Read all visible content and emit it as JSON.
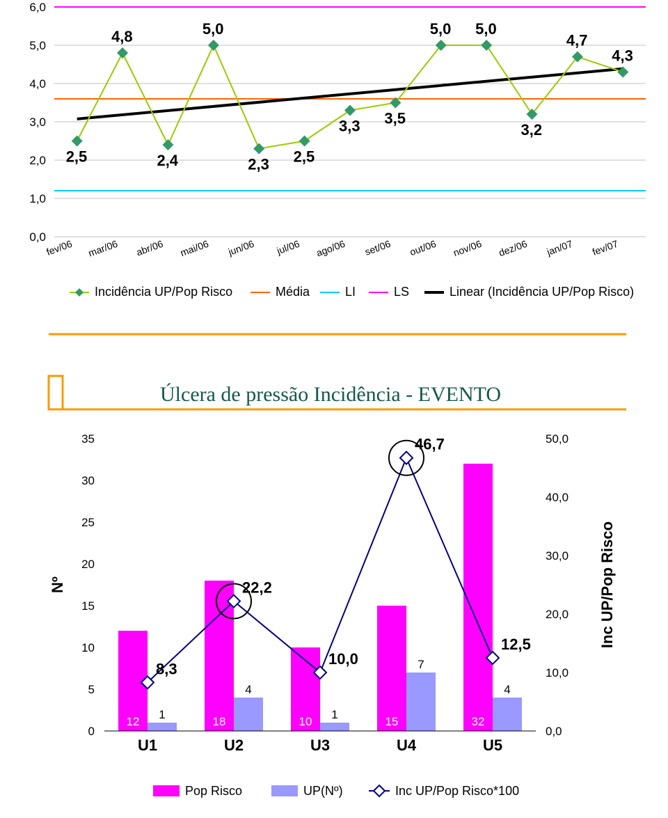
{
  "chart1": {
    "type": "line",
    "categories": [
      "fev/06",
      "mar/06",
      "abr/06",
      "mai/06",
      "jun/06",
      "jul/06",
      "ago/06",
      "set/06",
      "out/06",
      "nov/06",
      "dez/06",
      "jan/07",
      "fev/07"
    ],
    "values": [
      2.5,
      4.8,
      2.4,
      5.0,
      2.3,
      2.5,
      3.3,
      3.5,
      5.0,
      5.0,
      3.2,
      4.7,
      4.3
    ],
    "value_labels": [
      "2,5",
      "4,8",
      "2,4",
      "5,0",
      "2,3",
      "2,5",
      "3,3",
      "3,5",
      "5,0",
      "5,0",
      "3,2",
      "4,7",
      "4,3"
    ],
    "y_ticks": [
      0,
      1,
      2,
      3,
      4,
      5,
      6
    ],
    "y_tick_labels": [
      "0,0",
      "1,0",
      "2,0",
      "3,0",
      "4,0",
      "5,0",
      "6,0"
    ],
    "mean": 3.6,
    "li": 1.2,
    "ls": 6.0,
    "colors": {
      "series": "#99cc00",
      "marker": "#339966",
      "mean": "#ff6600",
      "li": "#00ccff",
      "ls": "#ff00ff",
      "trend": "#000000",
      "grid": "#808080"
    },
    "legend": {
      "s1": "Incidência UP/Pop Risco",
      "s2": "Média",
      "s3": "LI",
      "s4": "LS",
      "s5": "Linear (Incidência UP/Pop Risco)"
    }
  },
  "chart2": {
    "type": "combo",
    "title": "Úlcera de pressão Incidência - EVENTO",
    "categories": [
      "U1",
      "U2",
      "U3",
      "U4",
      "U5"
    ],
    "pop_risco": [
      12,
      18,
      10,
      15,
      32
    ],
    "up_n": [
      1,
      4,
      1,
      7,
      4
    ],
    "inc": [
      8.3,
      22.2,
      10.0,
      46.7,
      12.5
    ],
    "inc_labels": [
      "8,3",
      "22,2",
      "10,0",
      "46,7",
      "12,5"
    ],
    "y_left_ticks": [
      0,
      5,
      10,
      15,
      20,
      25,
      30,
      35
    ],
    "y_right_ticks": [
      0,
      10,
      20,
      30,
      40,
      50
    ],
    "y_right_labels": [
      "0,0",
      "10,0",
      "20,0",
      "30,0",
      "40,0",
      "50,0"
    ],
    "y_left_label": "Nº",
    "y_right_label": "Inc UP/Pop Risco",
    "colors": {
      "pop": "#ff00ff",
      "up": "#9999ff",
      "line": "#000080",
      "marker_fill": "#ffffff",
      "marker_stroke": "#000080",
      "highlight": "#000000",
      "title_accent": "#ff9900"
    },
    "legend": {
      "s1": "Pop Risco",
      "s2": "UP(Nº)",
      "s3": "Inc UP/Pop Risco*100"
    }
  }
}
